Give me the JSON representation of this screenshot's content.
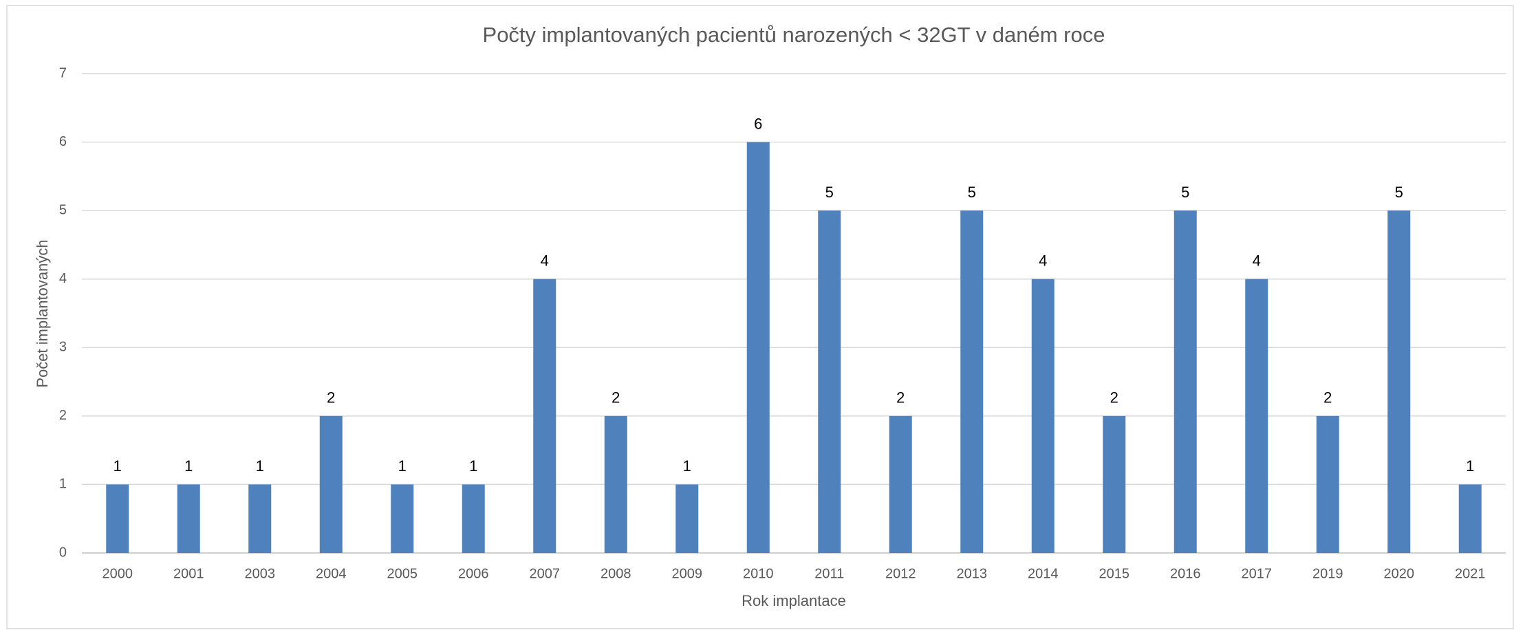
{
  "chart_data": {
    "type": "bar",
    "title": "Počty implantovaných pacientů narozených < 32GT v daném roce",
    "x_label": "Rok implantace",
    "y_label": "Počet implantovaných",
    "categories": [
      "2000",
      "2001",
      "2003",
      "2004",
      "2005",
      "2006",
      "2007",
      "2008",
      "2009",
      "2010",
      "2011",
      "2012",
      "2013",
      "2014",
      "2015",
      "2016",
      "2017",
      "2019",
      "2020",
      "2021"
    ],
    "values": [
      1,
      1,
      1,
      2,
      1,
      1,
      4,
      2,
      1,
      6,
      5,
      2,
      5,
      4,
      2,
      5,
      4,
      2,
      5,
      1
    ],
    "color": "#4f81bd",
    "ylim": [
      0,
      7
    ],
    "yticks": [
      0,
      1,
      2,
      3,
      4,
      5,
      6,
      7
    ],
    "grid": true
  }
}
